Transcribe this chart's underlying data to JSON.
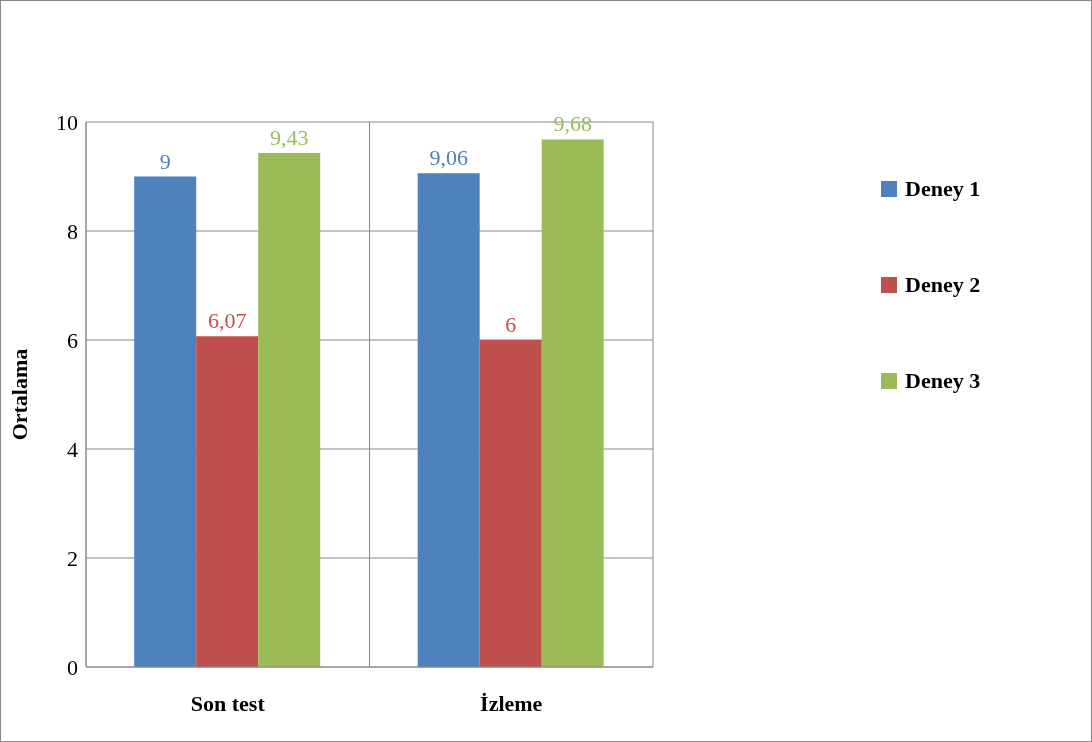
{
  "chart_data": {
    "type": "bar",
    "ylabel": "Ortalama",
    "categories": [
      "Son test",
      "İzleme"
    ],
    "series": [
      {
        "name": "Deney 1",
        "color": "#4f81bd",
        "values": [
          9,
          9.06
        ],
        "value_labels": [
          "9",
          "9,06"
        ]
      },
      {
        "name": "Deney 2",
        "color": "#c0504d",
        "values": [
          6.07,
          6
        ],
        "value_labels": [
          "6,07",
          "6"
        ]
      },
      {
        "name": "Deney 3",
        "color": "#9bbb59",
        "values": [
          9.43,
          9.68
        ],
        "value_labels": [
          "9,43",
          "9,68"
        ]
      }
    ],
    "ylim": [
      0,
      10
    ],
    "yticks": [
      0,
      2,
      4,
      6,
      8,
      10
    ],
    "grid": true,
    "legend": "right"
  }
}
